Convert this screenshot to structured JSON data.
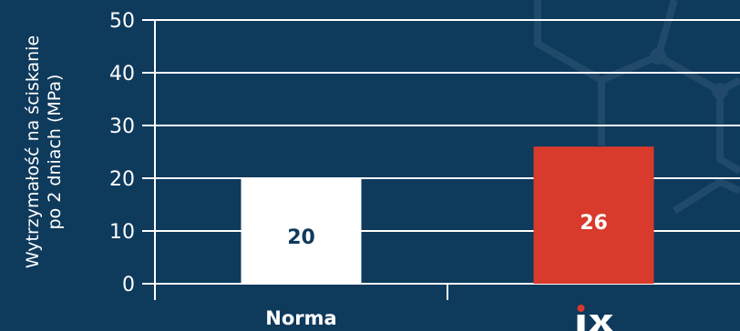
{
  "chart_data": {
    "type": "bar",
    "categories": [
      "Norma",
      "iX"
    ],
    "values": [
      20,
      26
    ],
    "title": "",
    "xlabel": "",
    "ylabel": [
      "Wytrzymałość na ściskanie",
      "po 2 dniach (MPa)"
    ],
    "ylim": [
      0,
      50
    ],
    "yticks": [
      0,
      10,
      20,
      30,
      40,
      50
    ],
    "grid": true,
    "bar_colors": [
      "#ffffff",
      "#d83a2b"
    ],
    "bar_label_colors": [
      "#0e3a5c",
      "#ffffff"
    ],
    "second_category_display": "logo"
  },
  "colors": {
    "background": "#0e3a5c",
    "gridline": "#ffffff",
    "text": "#ffffff",
    "accent": "#d83a2b"
  }
}
